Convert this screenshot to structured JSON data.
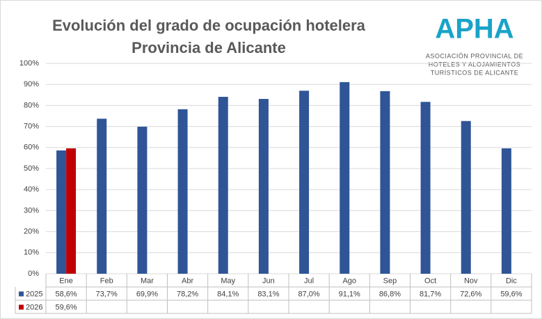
{
  "chart_data": {
    "type": "bar",
    "title": "Evolución del grado de ocupación hotelera",
    "subtitle": "Provincia de Alicante",
    "logo": {
      "name": "APHA",
      "lines": [
        "ASOCIACIÓN PROVINCIAL DE",
        "HOTELES Y ALOJAMIENTOS",
        "TURÍSTICOS DE ALICANTE"
      ]
    },
    "categories": [
      "Ene",
      "Feb",
      "Mar",
      "Abr",
      "May",
      "Jun",
      "Jul",
      "Ago",
      "Sep",
      "Oct",
      "Nov",
      "Dic"
    ],
    "series": [
      {
        "name": "2025",
        "color": "#2f5597",
        "values": [
          58.6,
          73.7,
          69.9,
          78.2,
          84.1,
          83.1,
          87.0,
          91.1,
          86.8,
          81.7,
          72.6,
          59.6
        ],
        "value_labels": [
          "58,6%",
          "73,7%",
          "69,9%",
          "78,2%",
          "84,1%",
          "83,1%",
          "87,0%",
          "91,1%",
          "86,8%",
          "81,7%",
          "72,6%",
          "59,6%"
        ]
      },
      {
        "name": "2026",
        "color": "#c00000",
        "values": [
          59.6,
          null,
          null,
          null,
          null,
          null,
          null,
          null,
          null,
          null,
          null,
          null
        ],
        "value_labels": [
          "59,6%",
          null,
          null,
          null,
          null,
          null,
          null,
          null,
          null,
          null,
          null,
          null
        ]
      }
    ],
    "ylim": [
      0,
      100
    ],
    "yticks": [
      {
        "value": 0,
        "label": "0%"
      },
      {
        "value": 10,
        "label": "10%"
      },
      {
        "value": 20,
        "label": "20%"
      },
      {
        "value": 30,
        "label": "30%"
      },
      {
        "value": 40,
        "label": "40%"
      },
      {
        "value": 50,
        "label": "50%"
      },
      {
        "value": 60,
        "label": "60%"
      },
      {
        "value": 70,
        "label": "70%"
      },
      {
        "value": 80,
        "label": "80%"
      },
      {
        "value": 90,
        "label": "90%"
      },
      {
        "value": 100,
        "label": "100%"
      }
    ],
    "grid": true
  }
}
